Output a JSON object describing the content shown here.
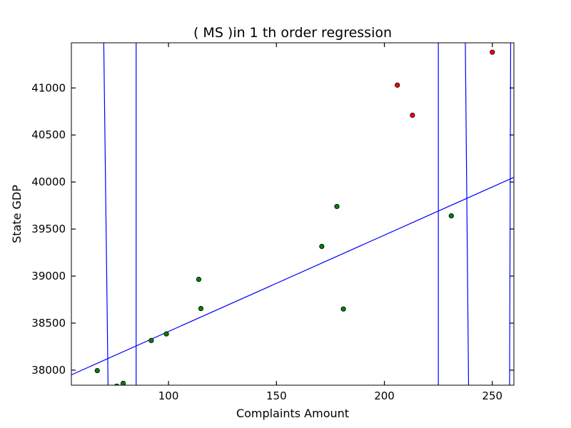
{
  "chart_data": {
    "type": "scatter",
    "title": "(  MS  )in 1 th order regression",
    "xlabel": "Complaints Amount",
    "ylabel": "State GDP",
    "xlim": [
      55,
      260
    ],
    "ylim": [
      37840,
      41480
    ],
    "xticks": [
      100,
      150,
      200,
      250
    ],
    "yticks": [
      38000,
      38500,
      39000,
      39500,
      40000,
      40500,
      41000
    ],
    "series": [
      {
        "color": "#008000",
        "points": [
          {
            "x": 67,
            "y": 37995
          },
          {
            "x": 76,
            "y": 37830
          },
          {
            "x": 79,
            "y": 37860
          },
          {
            "x": 92,
            "y": 38315
          },
          {
            "x": 99,
            "y": 38385
          },
          {
            "x": 114,
            "y": 38965
          },
          {
            "x": 115,
            "y": 38655
          },
          {
            "x": 171,
            "y": 39315
          },
          {
            "x": 178,
            "y": 39740
          },
          {
            "x": 181,
            "y": 38650
          },
          {
            "x": 231,
            "y": 39640
          }
        ]
      },
      {
        "color": "#ff0000",
        "points": [
          {
            "x": 206,
            "y": 41030
          },
          {
            "x": 213,
            "y": 40710
          },
          {
            "x": 250,
            "y": 41380
          }
        ]
      }
    ],
    "regression_line": {
      "color": "#0000ff",
      "points": [
        [
          55,
          37950
        ],
        [
          260,
          40050
        ]
      ]
    },
    "curve_segments": {
      "color": "#0000ff",
      "segments": [
        [
          [
            70,
            41480
          ],
          [
            72,
            37840
          ]
        ],
        [
          [
            85,
            41480
          ],
          [
            85,
            37840
          ]
        ],
        [
          [
            225,
            41480
          ],
          [
            225,
            37840
          ]
        ],
        [
          [
            237.5,
            41480
          ],
          [
            239,
            37840
          ]
        ],
        [
          [
            258.5,
            41480
          ],
          [
            258,
            37840
          ]
        ]
      ]
    },
    "grid": false,
    "legend": "none"
  }
}
